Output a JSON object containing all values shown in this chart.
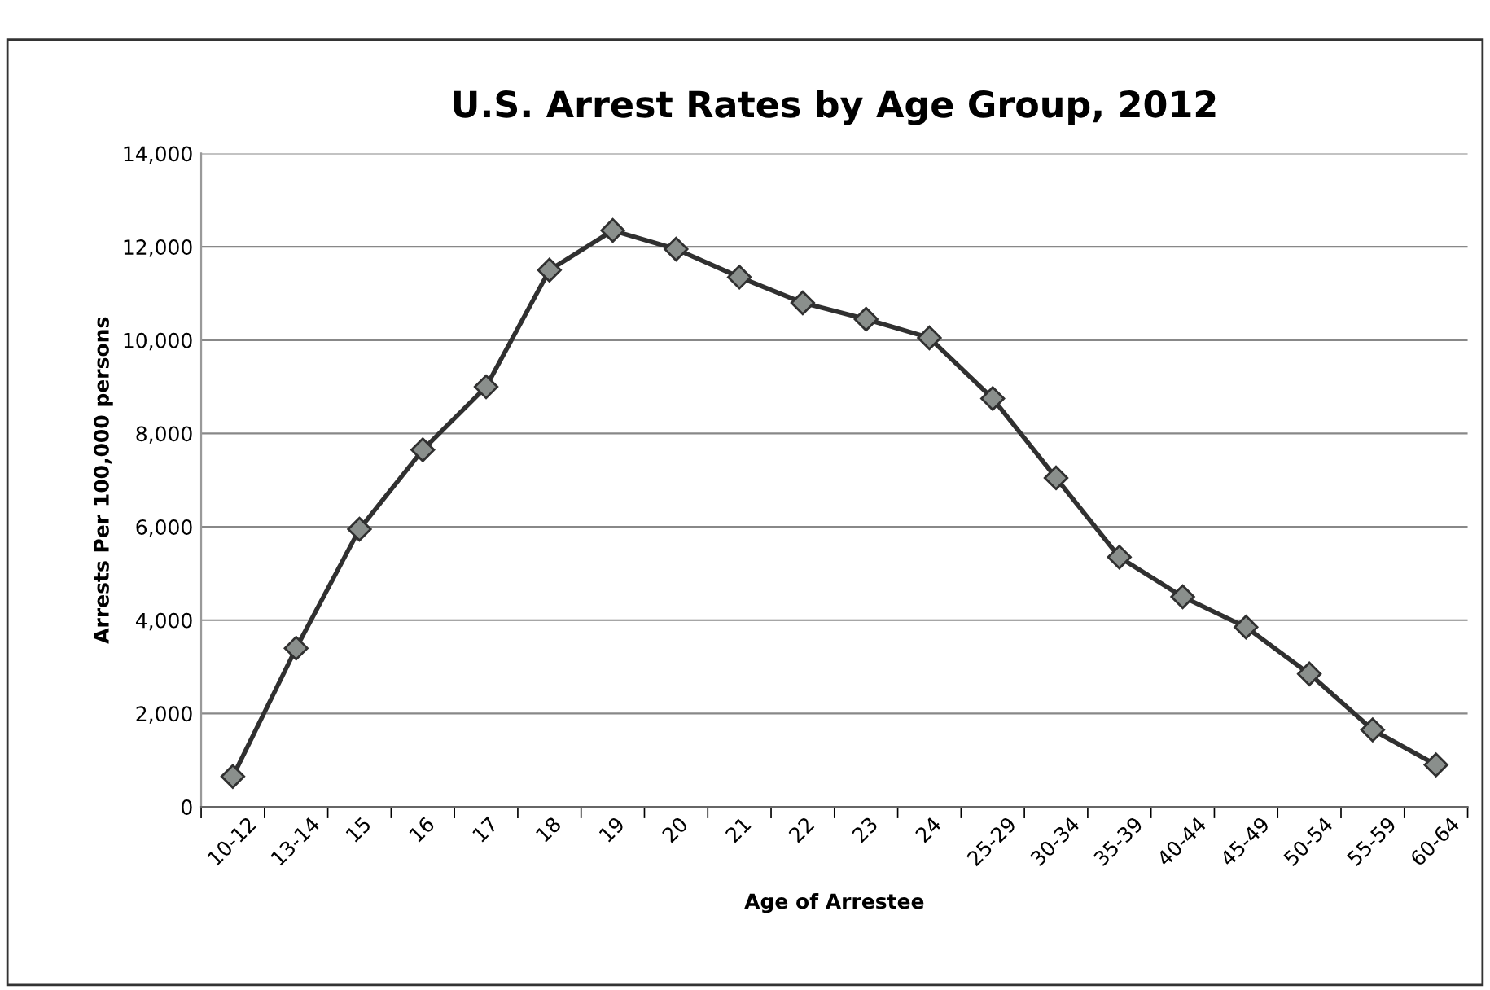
{
  "chart_data": {
    "type": "line",
    "title": "U.S. Arrest Rates by Age Group, 2012",
    "xlabel": "Age of Arrestee",
    "ylabel": "Arrests Per 100,000 persons",
    "categories": [
      "10-12",
      "13-14",
      "15",
      "16",
      "17",
      "18",
      "19",
      "20",
      "21",
      "22",
      "23",
      "24",
      "25-29",
      "30-34",
      "35-39",
      "40-44",
      "45-49",
      "50-54",
      "55-59",
      "60-64"
    ],
    "series": [
      {
        "color": "#303030",
        "values": [
          650,
          3400,
          5950,
          7650,
          9000,
          11500,
          12350,
          11950,
          11350,
          10800,
          10450,
          10050,
          8750,
          7050,
          5350,
          4500,
          3850,
          2850,
          1650,
          900
        ]
      }
    ],
    "ylim": [
      0,
      14000
    ],
    "yticks": [
      {
        "value": 0,
        "label": "0"
      },
      {
        "value": 2000,
        "label": "2,000"
      },
      {
        "value": 4000,
        "label": "4,000"
      },
      {
        "value": 6000,
        "label": "6,000"
      },
      {
        "value": 8000,
        "label": "8,000"
      },
      {
        "value": 10000,
        "label": "10,000"
      },
      {
        "value": 12000,
        "label": "12,000"
      },
      {
        "value": 14000,
        "label": "14,000"
      }
    ],
    "grid": "y",
    "marker": "diamond",
    "line_style": "solid",
    "legend": false
  }
}
